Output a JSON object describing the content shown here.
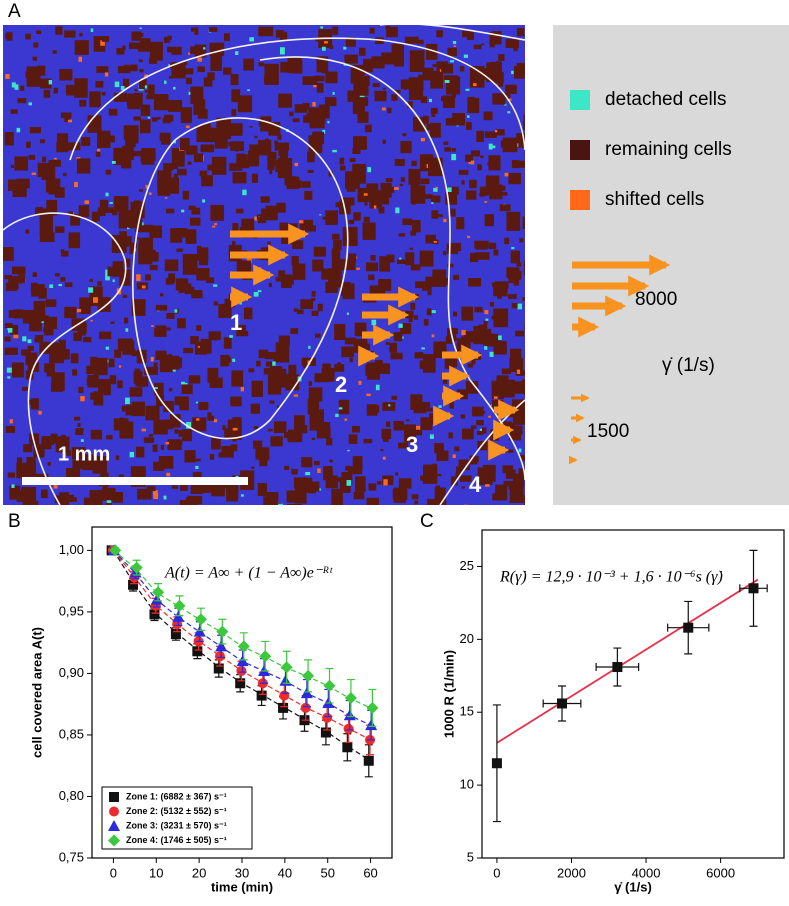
{
  "panel_a": {
    "label": "A",
    "legend": [
      {
        "label": "detached cells",
        "color": "#3ee6c8"
      },
      {
        "label": "remaining cells",
        "color": "#4a1410"
      },
      {
        "label": "shifted cells",
        "color": "#ff6a1a"
      }
    ],
    "scale_max": "8000",
    "scale_axis": "γ̇ (1/s)",
    "scale_min": "1500",
    "scale_bar": "1 mm",
    "zones": [
      "1",
      "2",
      "3",
      "4"
    ]
  },
  "chart_data": [
    {
      "type": "line",
      "label": "B",
      "xlabel": "time (min)",
      "ylabel": "cell covered area A(t)",
      "equation": "A(t) = A∞ + (1 − A∞)e⁻ᴿᵗ",
      "x": [
        0,
        5,
        10,
        15,
        20,
        25,
        30,
        35,
        40,
        45,
        50,
        55,
        60
      ],
      "xlim": [
        -5,
        65
      ],
      "xticks": [
        0,
        10,
        20,
        30,
        40,
        50,
        60
      ],
      "ylim": [
        0.75,
        1.019
      ],
      "yticks": [
        {
          "value": 0.75,
          "label": "0,75"
        },
        {
          "value": 0.8,
          "label": "0,80"
        },
        {
          "value": 0.85,
          "label": "0,85"
        },
        {
          "value": 0.9,
          "label": "0,90"
        },
        {
          "value": 0.95,
          "label": "0,95"
        },
        {
          "value": 1.0,
          "label": "1,00"
        }
      ],
      "series": [
        {
          "name": "Zone 1: (6882 ± 367) s⁻¹",
          "color": "#111111",
          "marker": "square",
          "values": [
            1.0,
            0.972,
            0.948,
            0.932,
            0.918,
            0.904,
            0.892,
            0.882,
            0.872,
            0.862,
            0.852,
            0.84,
            0.829
          ],
          "errors": [
            0.002,
            0.005,
            0.005,
            0.005,
            0.006,
            0.007,
            0.007,
            0.008,
            0.009,
            0.009,
            0.01,
            0.011,
            0.013
          ]
        },
        {
          "name": "Zone 2: (5132 ± 552) s⁻¹",
          "color": "#ee2a2a",
          "marker": "circle",
          "values": [
            1.0,
            0.978,
            0.955,
            0.94,
            0.926,
            0.914,
            0.902,
            0.892,
            0.882,
            0.872,
            0.864,
            0.855,
            0.846
          ],
          "errors": [
            0.002,
            0.005,
            0.006,
            0.006,
            0.007,
            0.008,
            0.008,
            0.009,
            0.009,
            0.01,
            0.01,
            0.011,
            0.012
          ]
        },
        {
          "name": "Zone 3: (3231 ± 570) s⁻¹",
          "color": "#2a2ae0",
          "marker": "triangle",
          "values": [
            1.0,
            0.982,
            0.96,
            0.946,
            0.934,
            0.922,
            0.91,
            0.902,
            0.894,
            0.884,
            0.876,
            0.866,
            0.858
          ],
          "errors": [
            0.002,
            0.005,
            0.006,
            0.007,
            0.008,
            0.009,
            0.009,
            0.01,
            0.01,
            0.011,
            0.011,
            0.012,
            0.012
          ]
        },
        {
          "name": "Zone 4: (1746 ± 505) s⁻¹",
          "color": "#3cc83c",
          "marker": "diamond",
          "values": [
            1.0,
            0.986,
            0.966,
            0.955,
            0.944,
            0.934,
            0.922,
            0.914,
            0.905,
            0.898,
            0.89,
            0.88,
            0.872
          ],
          "errors": [
            0.002,
            0.006,
            0.007,
            0.008,
            0.009,
            0.01,
            0.011,
            0.012,
            0.013,
            0.013,
            0.014,
            0.015,
            0.015
          ]
        }
      ]
    },
    {
      "type": "scatter",
      "label": "C",
      "xlabel": "γ̇ (1/s)",
      "ylabel": "1000 R (1/min)",
      "equation": "R(γ̇) = 12,9 · 10⁻³ + 1,6 · 10⁻⁶s (γ̇)",
      "x": [
        0,
        1746,
        3231,
        5132,
        6882
      ],
      "x_errors": [
        0,
        505,
        570,
        552,
        367
      ],
      "xlim": [
        -400,
        7700
      ],
      "xticks": [
        0,
        2000,
        4000,
        6000
      ],
      "ylim": [
        5,
        27.5
      ],
      "yticks": [
        5,
        10,
        15,
        20,
        25
      ],
      "series": [
        {
          "color": "#111111",
          "marker": "square",
          "values": [
            11.5,
            15.6,
            18.1,
            20.8,
            23.5
          ],
          "errors": [
            4.0,
            1.2,
            1.3,
            1.8,
            2.6
          ]
        }
      ],
      "fit": {
        "color": "#e8304a",
        "x": [
          0,
          7000
        ],
        "values": [
          12.9,
          24.1
        ]
      }
    }
  ]
}
